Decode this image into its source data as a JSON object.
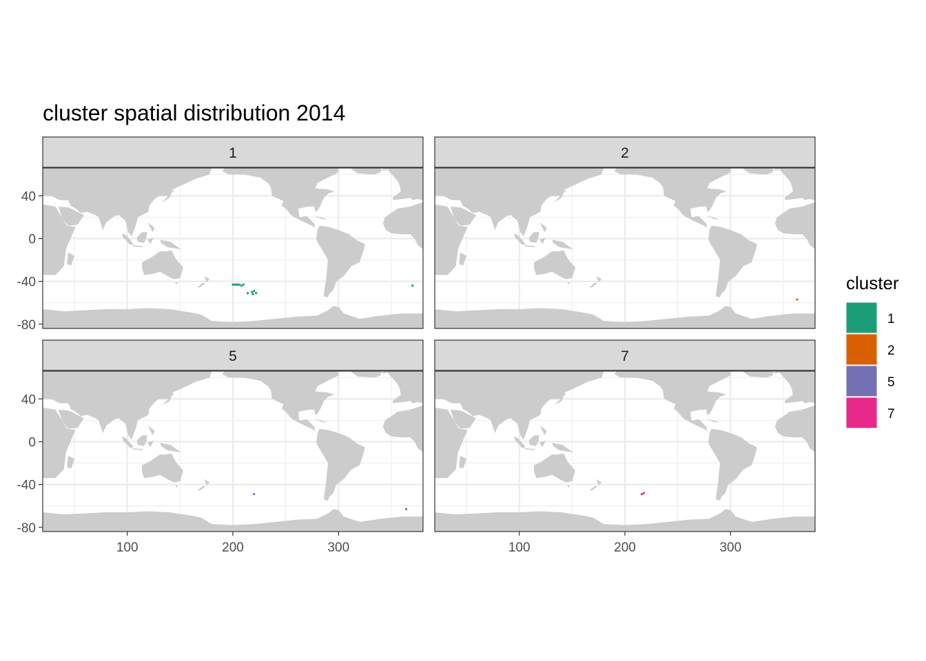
{
  "title": "cluster spatial distribution 2014",
  "chart_data": {
    "type": "map",
    "facets": [
      "1",
      "2",
      "5",
      "7"
    ],
    "x_ticks": [
      100,
      200,
      300
    ],
    "y_ticks": [
      40,
      0,
      -40,
      -80
    ],
    "x_tick_labels": [
      "100",
      "200",
      "300"
    ],
    "y_tick_labels": [
      "40",
      "0",
      "-40",
      "-80"
    ],
    "xlim": [
      20,
      380
    ],
    "ylim": [
      -84,
      66
    ],
    "grid": true,
    "land_color": "#cccccc",
    "legend": {
      "title": "cluster",
      "position": "right",
      "items": [
        {
          "label": "1",
          "color": "#1b9e77"
        },
        {
          "label": "2",
          "color": "#d95f02"
        },
        {
          "label": "5",
          "color": "#7570b3"
        },
        {
          "label": "7",
          "color": "#e7298a"
        }
      ]
    },
    "points": {
      "1": [
        [
          200,
          -43
        ],
        [
          202,
          -43
        ],
        [
          204,
          -43
        ],
        [
          206,
          -43
        ],
        [
          208,
          -44
        ],
        [
          210,
          -43
        ],
        [
          218,
          -50
        ],
        [
          220,
          -49
        ],
        [
          222,
          -51
        ],
        [
          219,
          -52
        ],
        [
          214,
          -51
        ],
        [
          370,
          -44
        ]
      ],
      "2": [
        [
          363,
          -57
        ]
      ],
      "5": [
        [
          220,
          -49
        ],
        [
          364,
          -63
        ]
      ],
      "7": [
        [
          216,
          -49
        ],
        [
          218,
          -48
        ]
      ]
    }
  }
}
